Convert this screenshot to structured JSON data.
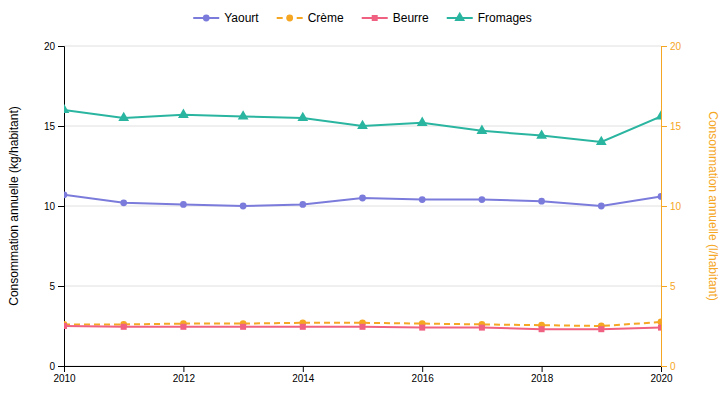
{
  "chart_data": {
    "type": "line",
    "x": [
      2010,
      2011,
      2012,
      2013,
      2014,
      2015,
      2016,
      2017,
      2018,
      2019,
      2020
    ],
    "xlim": [
      2010,
      2020
    ],
    "xticks": [
      2010,
      2012,
      2014,
      2016,
      2018,
      2020
    ],
    "ylim": [
      0,
      20
    ],
    "yticks": [
      0,
      5,
      10,
      15,
      20
    ],
    "y2lim": [
      0,
      20
    ],
    "y2ticks": [
      0,
      5,
      10,
      15,
      20
    ],
    "ylabel": "Consommation annuelle (kg/habitant)",
    "y2label": "Consommation annuelle (l/habitant)",
    "grid": true,
    "legend": "top",
    "series": [
      {
        "name": "Yaourt",
        "color": "#7b7bdc",
        "marker": "circle",
        "line_style": "solid",
        "axis": "y",
        "values": [
          10.7,
          10.2,
          10.1,
          10.0,
          10.1,
          10.5,
          10.4,
          10.4,
          10.3,
          10.0,
          10.6
        ]
      },
      {
        "name": "Crème",
        "color": "#f5a623",
        "marker": "circle",
        "line_style": "dashed",
        "axis": "y2",
        "values": [
          2.6,
          2.6,
          2.65,
          2.65,
          2.7,
          2.7,
          2.65,
          2.6,
          2.55,
          2.5,
          2.75
        ]
      },
      {
        "name": "Beurre",
        "color": "#f06080",
        "marker": "square",
        "line_style": "solid",
        "axis": "y2",
        "values": [
          2.5,
          2.45,
          2.45,
          2.45,
          2.45,
          2.45,
          2.4,
          2.4,
          2.3,
          2.3,
          2.4
        ]
      },
      {
        "name": "Fromages",
        "color": "#2ab5a0",
        "marker": "triangle",
        "line_style": "solid",
        "axis": "y",
        "values": [
          16.0,
          15.5,
          15.7,
          15.6,
          15.5,
          15.0,
          15.2,
          14.7,
          14.4,
          14.0,
          15.6
        ]
      }
    ]
  }
}
